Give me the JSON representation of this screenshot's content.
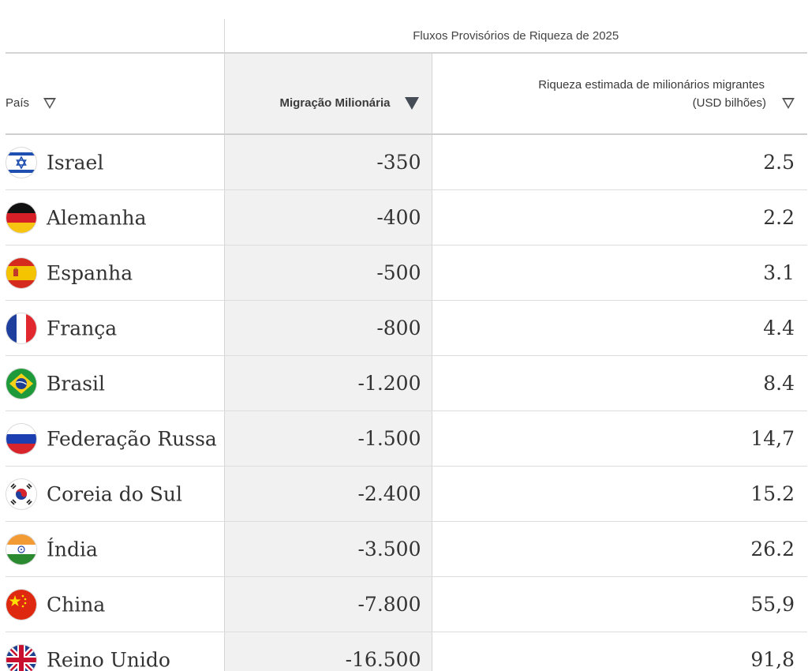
{
  "table": {
    "group_header": "Fluxos Provisórios de Riqueza de 2025",
    "columns": {
      "country": "País",
      "migration": "Migração Milionária",
      "wealth_line1": "Riqueza estimada de milionários migrantes",
      "wealth_line2": "(USD bilhões)"
    },
    "sort": {
      "country": "filter-open-icon",
      "migration": "sort-desc-filled-icon",
      "wealth": "filter-open-icon"
    },
    "rows": [
      {
        "country": "Israel",
        "flag": "israel-flag-icon",
        "migration": "-350",
        "wealth": "2.5"
      },
      {
        "country": "Alemanha",
        "flag": "germany-flag-icon",
        "migration": "-400",
        "wealth": "2.2"
      },
      {
        "country": "Espanha",
        "flag": "spain-flag-icon",
        "migration": "-500",
        "wealth": "3.1"
      },
      {
        "country": "França",
        "flag": "france-flag-icon",
        "migration": "-800",
        "wealth": "4.4"
      },
      {
        "country": "Brasil",
        "flag": "brazil-flag-icon",
        "migration": "-1.200",
        "wealth": "8.4"
      },
      {
        "country": "Federação Russa",
        "flag": "russia-flag-icon",
        "migration": "-1.500",
        "wealth": "14,7"
      },
      {
        "country": "Coreia do Sul",
        "flag": "south-korea-flag-icon",
        "migration": "-2.400",
        "wealth": "15.2"
      },
      {
        "country": "Índia",
        "flag": "india-flag-icon",
        "migration": "-3.500",
        "wealth": "26.2"
      },
      {
        "country": "China",
        "flag": "china-flag-icon",
        "migration": "-7.800",
        "wealth": "55,9"
      },
      {
        "country": "Reino Unido",
        "flag": "uk-flag-icon",
        "migration": "-16.500",
        "wealth": "91,8"
      }
    ]
  },
  "colors": {
    "highlight_column_bg": "#f1f1f1",
    "border": "#dcdcdc",
    "text": "#333333"
  }
}
